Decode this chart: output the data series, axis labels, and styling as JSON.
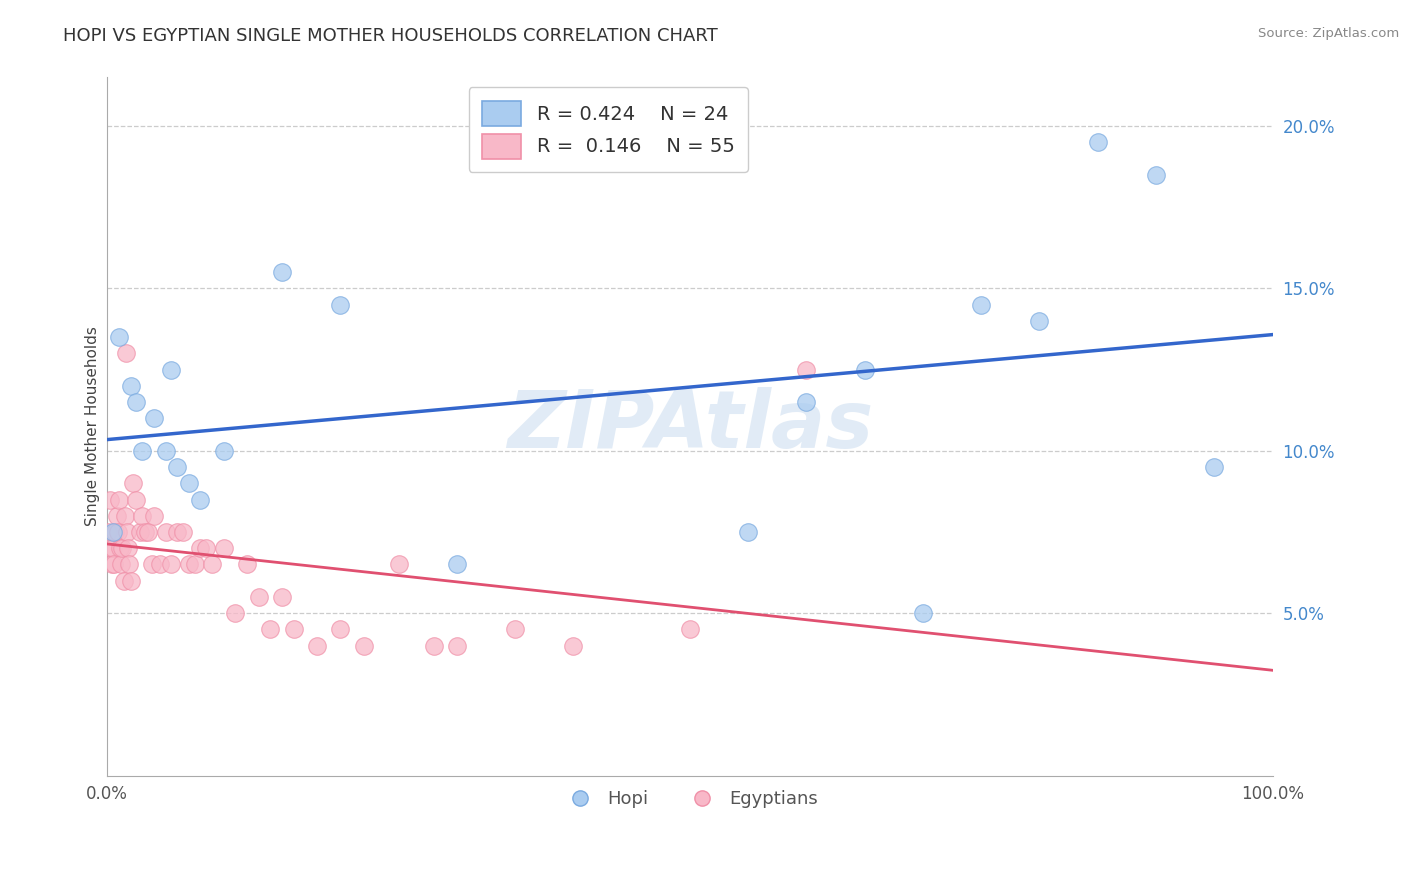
{
  "title": "HOPI VS EGYPTIAN SINGLE MOTHER HOUSEHOLDS CORRELATION CHART",
  "source": "Source: ZipAtlas.com",
  "ylabel": "Single Mother Households",
  "background_color": "#ffffff",
  "hopi": {
    "label": "Hopi",
    "R": 0.424,
    "N": 24,
    "color_fill": "#aaccf0",
    "color_edge": "#7aaae0",
    "line_color": "#3366cc",
    "x": [
      0.5,
      1.0,
      2.0,
      2.5,
      3.0,
      4.0,
      5.0,
      5.5,
      6.0,
      7.0,
      8.0,
      10.0,
      15.0,
      20.0,
      30.0,
      55.0,
      60.0,
      65.0,
      70.0,
      75.0,
      80.0,
      85.0,
      90.0,
      95.0
    ],
    "y": [
      7.5,
      13.5,
      12.0,
      11.5,
      10.0,
      11.0,
      10.0,
      12.5,
      9.5,
      9.0,
      8.5,
      10.0,
      15.5,
      14.5,
      6.5,
      7.5,
      11.5,
      12.5,
      5.0,
      14.5,
      14.0,
      19.5,
      18.5,
      9.5
    ]
  },
  "egyptians": {
    "label": "Egyptians",
    "R": 0.146,
    "N": 55,
    "color_fill": "#f8b8c8",
    "color_edge": "#f090a8",
    "line_color": "#e05070",
    "x": [
      0.1,
      0.2,
      0.3,
      0.4,
      0.5,
      0.6,
      0.7,
      0.8,
      0.9,
      1.0,
      1.1,
      1.2,
      1.3,
      1.4,
      1.5,
      1.6,
      1.7,
      1.8,
      1.9,
      2.0,
      2.2,
      2.5,
      2.8,
      3.0,
      3.2,
      3.5,
      3.8,
      4.0,
      4.5,
      5.0,
      5.5,
      6.0,
      6.5,
      7.0,
      7.5,
      8.0,
      8.5,
      9.0,
      10.0,
      11.0,
      12.0,
      13.0,
      14.0,
      15.0,
      16.0,
      18.0,
      20.0,
      22.0,
      25.0,
      28.0,
      30.0,
      35.0,
      40.0,
      50.0,
      60.0
    ],
    "y": [
      7.5,
      8.5,
      7.0,
      6.5,
      7.0,
      6.5,
      7.5,
      8.0,
      7.5,
      8.5,
      7.0,
      6.5,
      7.0,
      6.0,
      8.0,
      13.0,
      7.5,
      7.0,
      6.5,
      6.0,
      9.0,
      8.5,
      7.5,
      8.0,
      7.5,
      7.5,
      6.5,
      8.0,
      6.5,
      7.5,
      6.5,
      7.5,
      7.5,
      6.5,
      6.5,
      7.0,
      7.0,
      6.5,
      7.0,
      5.0,
      6.5,
      5.5,
      4.5,
      5.5,
      4.5,
      4.0,
      4.5,
      4.0,
      6.5,
      4.0,
      4.0,
      4.5,
      4.0,
      4.5,
      12.5
    ]
  },
  "xlim": [
    0,
    100
  ],
  "ylim": [
    0,
    21.5
  ],
  "yticks": [
    5.0,
    10.0,
    15.0,
    20.0
  ],
  "xticks": [
    0,
    100
  ],
  "grid_color": "#cccccc",
  "title_fontsize": 13,
  "axis_label_fontsize": 11,
  "tick_fontsize": 12,
  "legend_fontsize": 14
}
